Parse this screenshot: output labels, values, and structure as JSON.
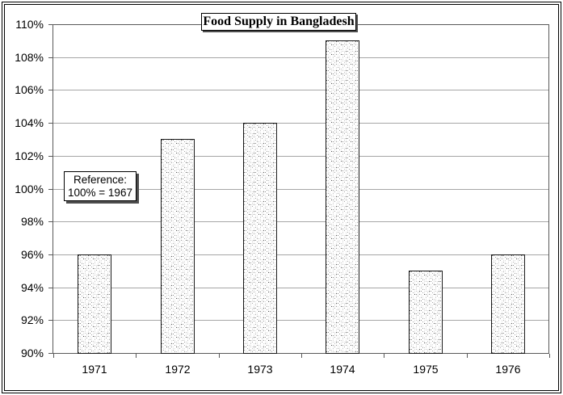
{
  "chart_data": {
    "type": "bar",
    "title": "Food Supply in Bangladesh",
    "categories": [
      "1971",
      "1972",
      "1973",
      "1974",
      "1975",
      "1976"
    ],
    "values": [
      96,
      103,
      104,
      109,
      95,
      96
    ],
    "ylim": [
      90,
      110
    ],
    "ytick_step": 2,
    "ytick_suffix": "%",
    "xlabel": "",
    "ylabel": "",
    "grid": "horizontal",
    "legend": "none",
    "annotation": {
      "line1": "Reference:",
      "line2": "100% = 1967"
    },
    "bar_fill": "dotted-pattern",
    "colors": {
      "background": "#ffffff",
      "plot_border": "#595959",
      "gridline": "#a6a6a6",
      "bar_border": "#1a1a1a",
      "bar_dot_dark": "#4f4f4f",
      "bar_dot_light": "#dadada",
      "text": "#000000",
      "box_shadow": "#4d4d4d",
      "frame": "#000000"
    }
  }
}
